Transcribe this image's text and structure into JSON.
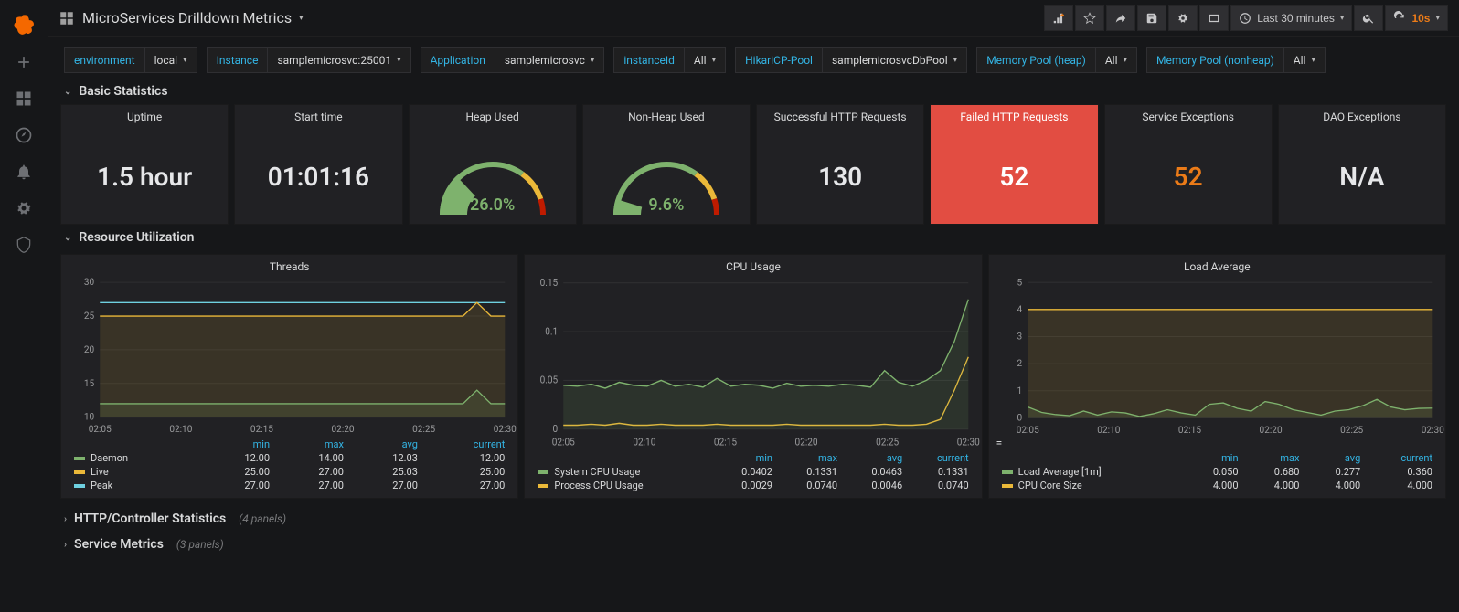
{
  "header": {
    "title": "MicroServices Drilldown Metrics",
    "time_label": "Last 30 minutes",
    "refresh_value": "10s"
  },
  "filters": [
    {
      "label": "environment",
      "value": "local"
    },
    {
      "label": "Instance",
      "value": "samplemicrosvc:25001"
    },
    {
      "label": "Application",
      "value": "samplemicrosvc"
    },
    {
      "label": "instanceId",
      "value": "All"
    },
    {
      "label": "HikariCP-Pool",
      "value": "samplemicrosvcDbPool"
    },
    {
      "label": "Memory Pool (heap)",
      "value": "All"
    },
    {
      "label": "Memory Pool (nonheap)",
      "value": "All"
    }
  ],
  "sections": {
    "basic": "Basic Statistics",
    "resource": "Resource Utilization",
    "http": "HTTP/Controller Statistics",
    "http_count": "(4 panels)",
    "service": "Service Metrics",
    "service_count": "(3 panels)"
  },
  "stats": {
    "uptime": {
      "title": "Uptime",
      "value": "1.5 hour"
    },
    "start": {
      "title": "Start time",
      "value": "01:01:16"
    },
    "heap": {
      "title": "Heap Used",
      "value": "26.0%",
      "frac": 0.26
    },
    "nonheap": {
      "title": "Non-Heap Used",
      "value": "9.6%",
      "frac": 0.096
    },
    "success": {
      "title": "Successful HTTP Requests",
      "value": "130"
    },
    "failed": {
      "title": "Failed HTTP Requests",
      "value": "52"
    },
    "svcex": {
      "title": "Service Exceptions",
      "value": "52"
    },
    "daoex": {
      "title": "DAO Exceptions",
      "value": "N/A"
    }
  },
  "gauge_colors": {
    "green": "#7eb26d",
    "orange": "#eab839",
    "red": "#bf1b00",
    "track": "#3a3a3c"
  },
  "x_ticks": [
    "02:05",
    "02:10",
    "02:15",
    "02:20",
    "02:25",
    "02:30"
  ],
  "charts": {
    "threads": {
      "title": "Threads",
      "ylim": [
        10,
        30
      ],
      "yticks": [
        10,
        15,
        20,
        25,
        30
      ],
      "series": [
        {
          "name": "Daemon",
          "color": "#7eb26d",
          "min": "12.00",
          "max": "14.00",
          "avg": "12.03",
          "cur": "12.00",
          "points": [
            12,
            12,
            12,
            12,
            12,
            12,
            12,
            12,
            12,
            12,
            12,
            12,
            12,
            12,
            12,
            12,
            12,
            12,
            12,
            12,
            12,
            12,
            12,
            12,
            12,
            12,
            12,
            14,
            12,
            12
          ],
          "fill": true
        },
        {
          "name": "Live",
          "color": "#eab839",
          "min": "25.00",
          "max": "27.00",
          "avg": "25.03",
          "cur": "25.00",
          "points": [
            25,
            25,
            25,
            25,
            25,
            25,
            25,
            25,
            25,
            25,
            25,
            25,
            25,
            25,
            25,
            25,
            25,
            25,
            25,
            25,
            25,
            25,
            25,
            25,
            25,
            25,
            25,
            27,
            25,
            25
          ],
          "fill": true
        },
        {
          "name": "Peak",
          "color": "#6ed0e0",
          "min": "27.00",
          "max": "27.00",
          "avg": "27.00",
          "cur": "27.00",
          "points": [
            27,
            27,
            27,
            27,
            27,
            27,
            27,
            27,
            27,
            27,
            27,
            27,
            27,
            27,
            27,
            27,
            27,
            27,
            27,
            27,
            27,
            27,
            27,
            27,
            27,
            27,
            27,
            27,
            27,
            27
          ],
          "fill": false
        }
      ],
      "cols": [
        "min",
        "max",
        "avg",
        "current"
      ]
    },
    "cpu": {
      "title": "CPU Usage",
      "ylim": [
        0,
        0.15
      ],
      "yticks": [
        0,
        0.05,
        0.1,
        0.15
      ],
      "series": [
        {
          "name": "System CPU Usage",
          "color": "#7eb26d",
          "min": "0.0402",
          "max": "0.1331",
          "avg": "0.0463",
          "cur": "0.1331",
          "points": [
            0.045,
            0.044,
            0.046,
            0.042,
            0.048,
            0.045,
            0.044,
            0.05,
            0.044,
            0.046,
            0.043,
            0.052,
            0.044,
            0.046,
            0.045,
            0.042,
            0.047,
            0.044,
            0.045,
            0.044,
            0.046,
            0.045,
            0.043,
            0.06,
            0.048,
            0.044,
            0.05,
            0.06,
            0.09,
            0.1331
          ],
          "fill": true
        },
        {
          "name": "Process CPU Usage",
          "color": "#eab839",
          "min": "0.0029",
          "max": "0.0740",
          "avg": "0.0046",
          "cur": "0.0740",
          "points": [
            0.004,
            0.004,
            0.005,
            0.004,
            0.006,
            0.004,
            0.004,
            0.005,
            0.004,
            0.004,
            0.004,
            0.005,
            0.004,
            0.004,
            0.004,
            0.004,
            0.005,
            0.004,
            0.004,
            0.004,
            0.004,
            0.004,
            0.004,
            0.005,
            0.004,
            0.004,
            0.005,
            0.01,
            0.04,
            0.074
          ],
          "fill": false
        }
      ],
      "cols": [
        "min",
        "max",
        "avg",
        "current"
      ]
    },
    "load": {
      "title": "Load Average",
      "ylim": [
        0,
        5
      ],
      "yticks": [
        0,
        1,
        2,
        3,
        4,
        5
      ],
      "series": [
        {
          "name": "Load Average [1m]",
          "color": "#7eb26d",
          "min": "0.050",
          "max": "0.680",
          "avg": "0.277",
          "cur": "0.360",
          "points": [
            0.4,
            0.2,
            0.12,
            0.08,
            0.25,
            0.1,
            0.22,
            0.18,
            0.05,
            0.15,
            0.3,
            0.18,
            0.1,
            0.5,
            0.55,
            0.35,
            0.25,
            0.6,
            0.5,
            0.3,
            0.2,
            0.1,
            0.25,
            0.3,
            0.45,
            0.68,
            0.4,
            0.3,
            0.35,
            0.36
          ],
          "fill": true
        },
        {
          "name": "CPU Core Size",
          "color": "#eab839",
          "min": "4.000",
          "max": "4.000",
          "avg": "4.000",
          "cur": "4.000",
          "points": [
            4,
            4,
            4,
            4,
            4,
            4,
            4,
            4,
            4,
            4,
            4,
            4,
            4,
            4,
            4,
            4,
            4,
            4,
            4,
            4,
            4,
            4,
            4,
            4,
            4,
            4,
            4,
            4,
            4,
            4
          ],
          "fill": true
        }
      ],
      "cols": [
        "min",
        "max",
        "avg",
        "current"
      ]
    }
  },
  "colors": {
    "bg": "#161719",
    "panel": "#212124",
    "text": "#d8d9da",
    "accent": "#33b5e5",
    "failed_bg": "#e24d42",
    "orange": "#eb7b18"
  }
}
